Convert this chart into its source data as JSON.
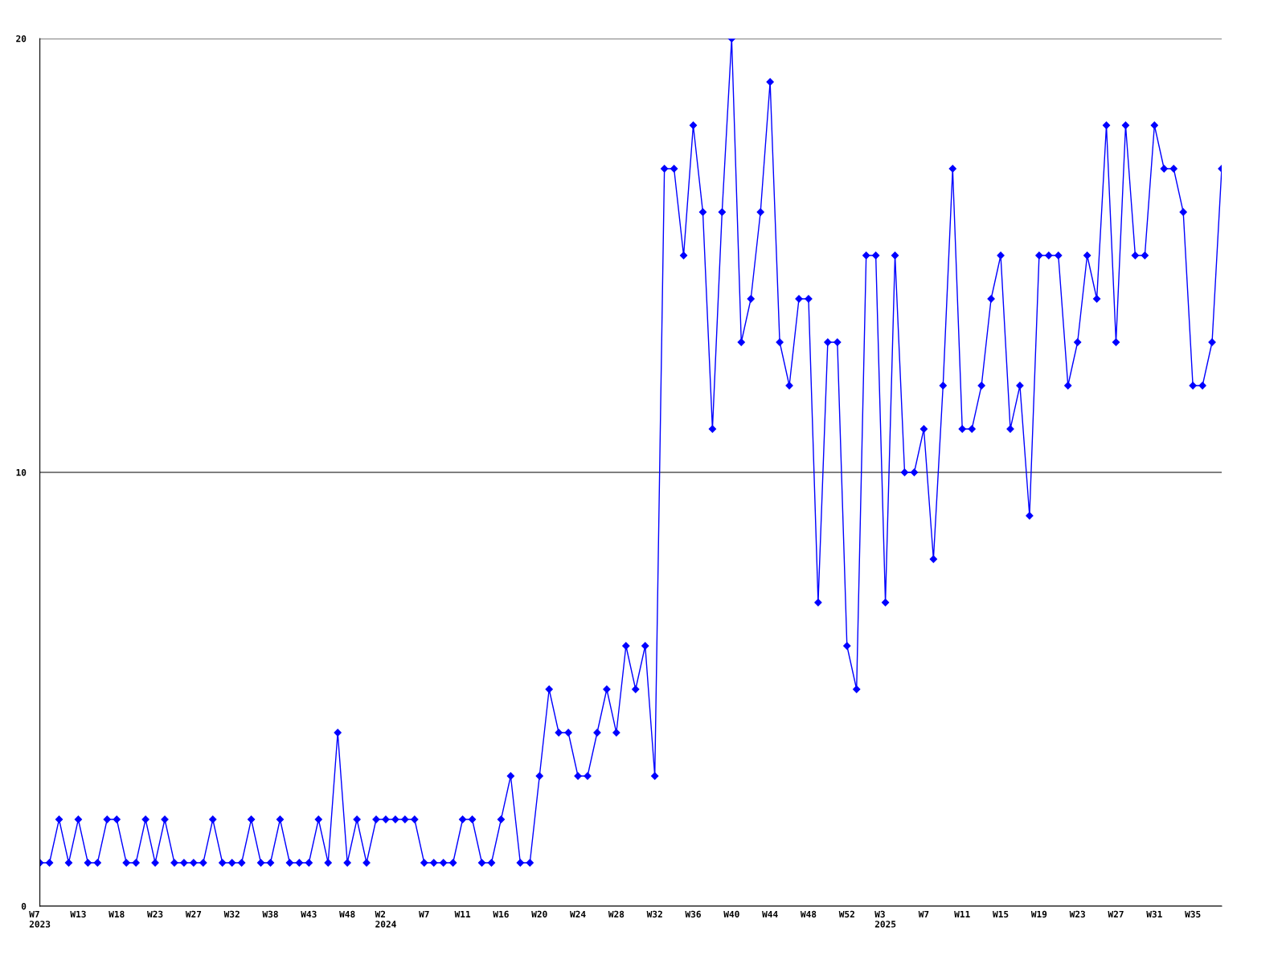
{
  "chart_data": {
    "type": "line",
    "categories": [
      "W7\n2023",
      null,
      null,
      null,
      "W13",
      null,
      null,
      null,
      "W18",
      null,
      null,
      null,
      "W23",
      null,
      null,
      null,
      "W27",
      null,
      null,
      null,
      "W32",
      null,
      null,
      null,
      "W38",
      null,
      null,
      null,
      "W43",
      null,
      null,
      null,
      "W48",
      null,
      null,
      null,
      "W2\n2024",
      null,
      null,
      null,
      "W7",
      null,
      null,
      null,
      "W11",
      null,
      null,
      null,
      "W16",
      null,
      null,
      null,
      "W20",
      null,
      null,
      null,
      "W24",
      null,
      null,
      null,
      "W28",
      null,
      null,
      null,
      "W32",
      null,
      null,
      null,
      "W36",
      null,
      null,
      null,
      "W40",
      null,
      null,
      null,
      "W44",
      null,
      null,
      null,
      "W48",
      null,
      null,
      null,
      "W52",
      null,
      null,
      null,
      "W3\n2025",
      null,
      null,
      null,
      "W7",
      null,
      null,
      null,
      "W11",
      null,
      null,
      null,
      "W15",
      null,
      null,
      null,
      "W19",
      null,
      null,
      null,
      "W23",
      null,
      null,
      null,
      "W27",
      null,
      null,
      null,
      "W31",
      null,
      null,
      null,
      "W35",
      null,
      null,
      null
    ],
    "series": [
      {
        "color": "#0000ff",
        "values": [
          1,
          1,
          2,
          1,
          2,
          1,
          1,
          2,
          2,
          1,
          1,
          2,
          1,
          2,
          1,
          1,
          1,
          1,
          2,
          1,
          1,
          1,
          2,
          1,
          1,
          2,
          1,
          1,
          1,
          2,
          1,
          4,
          1,
          2,
          1,
          2,
          2,
          2,
          2,
          2,
          1,
          1,
          1,
          1,
          2,
          2,
          1,
          1,
          2,
          3,
          1,
          1,
          3,
          5,
          4,
          4,
          3,
          3,
          4,
          5,
          4,
          6,
          5,
          6,
          3,
          17,
          17,
          15,
          18,
          16,
          11,
          16,
          20,
          13,
          14,
          16,
          19,
          13,
          12,
          14,
          14,
          7,
          13,
          13,
          6,
          5,
          15,
          15,
          7,
          15,
          10,
          10,
          11,
          8,
          12,
          17,
          11,
          11,
          12,
          14,
          15,
          11,
          12,
          9,
          15,
          15,
          15,
          12,
          13,
          15,
          14,
          18,
          13,
          18,
          15,
          15,
          18,
          17,
          17,
          16,
          12,
          12,
          13,
          17
        ]
      }
    ],
    "ylim": [
      0,
      20
    ],
    "yticks": [
      0,
      10,
      20
    ],
    "grid": "y",
    "marker": "diamond",
    "line_style": "solid"
  }
}
